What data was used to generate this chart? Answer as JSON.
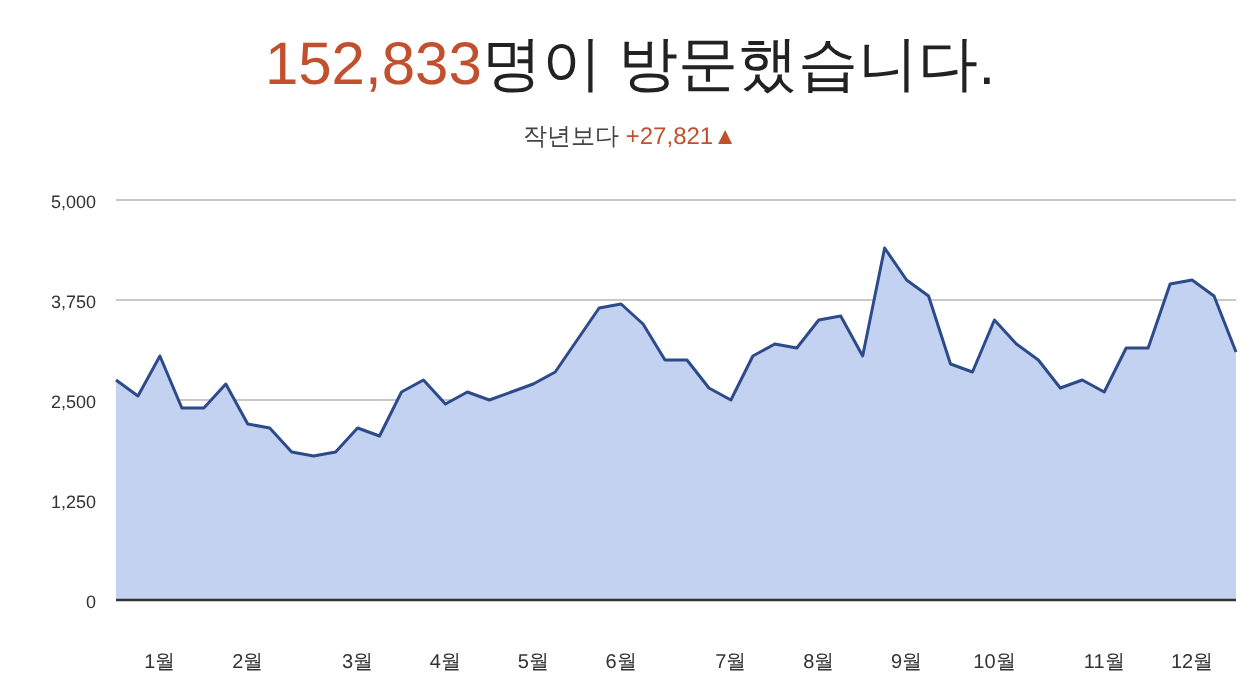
{
  "chart_data": {
    "type": "area",
    "title": "152,833명이 방문했습니다.",
    "subtitle": "작년보다 +27,821▲",
    "categories": [
      null,
      null,
      "1월",
      null,
      null,
      null,
      "2월",
      null,
      null,
      null,
      null,
      "3월",
      null,
      null,
      null,
      "4월",
      null,
      null,
      null,
      "5월",
      null,
      null,
      null,
      "6월",
      null,
      null,
      null,
      null,
      "7월",
      null,
      null,
      null,
      "8월",
      null,
      null,
      null,
      "9월",
      null,
      null,
      null,
      "10월",
      null,
      null,
      null,
      null,
      "11월",
      null,
      null,
      null,
      "12월",
      null,
      null
    ],
    "series": [
      {
        "color": "#2d4a8a",
        "values": [
          2750,
          2550,
          3050,
          2400,
          2400,
          2700,
          2200,
          2150,
          1850,
          1800,
          1850,
          2150,
          2050,
          2600,
          2750,
          2450,
          2600,
          2500,
          2600,
          2700,
          2850,
          3250,
          3650,
          3700,
          3450,
          3000,
          3000,
          2650,
          2500,
          3050,
          3200,
          3150,
          3500,
          3550,
          3050,
          4400,
          4000,
          3800,
          2950,
          2850,
          3500,
          3200,
          3000,
          2650,
          2750,
          2600,
          3150,
          3150,
          3950,
          4000,
          3800,
          3100
        ]
      }
    ],
    "ylim": [
      0,
      5000
    ],
    "yticks": [
      0,
      {
        "value": 1250,
        "label": "1,250"
      },
      {
        "value": 2500,
        "label": "2,500"
      },
      {
        "value": 3750,
        "label": "3,750"
      },
      {
        "value": 5000,
        "label": "5,000"
      }
    ],
    "grid": "y"
  }
}
